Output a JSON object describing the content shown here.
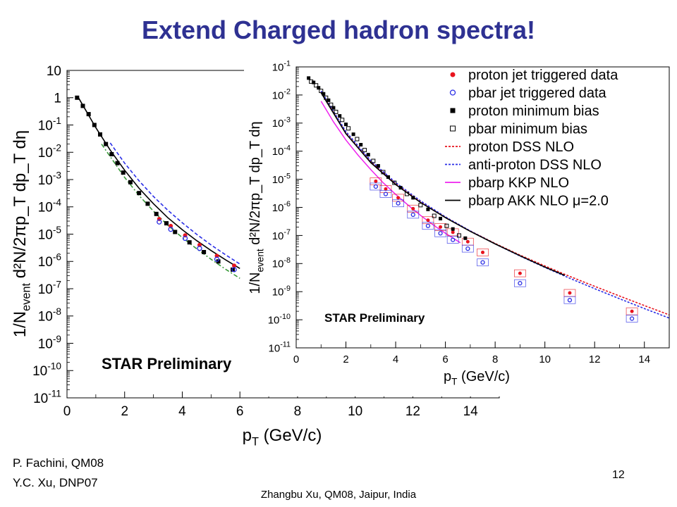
{
  "slide": {
    "title": "Extend Charged hadron spectra!",
    "credits": [
      "P. Fachini, QM08",
      "Y.C. Xu, DNP07"
    ],
    "page_number": "12",
    "footer": "Zhangbu Xu, QM08, Jaipur, India"
  },
  "chart_data": [
    {
      "type": "scatter",
      "log_y": true,
      "xlabel": "p_T (GeV/c)",
      "ylabel": "1/N_event d²N/2πp_T dp_T dη",
      "xlim": [
        0,
        15
      ],
      "ylim": [
        1e-11,
        10
      ],
      "x_ticks": [
        "0",
        "2",
        "4",
        "6",
        "8",
        "10",
        "12",
        "14"
      ],
      "y_ticks": [
        "10",
        "1",
        "10-1",
        "10-2",
        "10-3",
        "10-4",
        "10-5",
        "10-6",
        "10-7",
        "10-8",
        "10-9",
        "10-10",
        "10-11"
      ],
      "annotation": "STAR Preliminary",
      "series": [
        {
          "marker": "black-square",
          "points": [
            [
              0.35,
              1.0
            ],
            [
              0.55,
              0.5
            ],
            [
              0.75,
              0.25
            ],
            [
              0.95,
              0.1
            ],
            [
              1.15,
              0.045
            ],
            [
              1.35,
              0.02
            ],
            [
              1.55,
              0.0085
            ],
            [
              1.75,
              0.004
            ],
            [
              1.95,
              0.0018
            ],
            [
              2.2,
              0.0008
            ],
            [
              2.5,
              0.00032
            ],
            [
              2.8,
              0.00013
            ],
            [
              3.1,
              5.5e-05
            ],
            [
              3.45,
              2.5e-05
            ],
            [
              3.75,
              1.2e-05
            ],
            [
              4.25,
              5e-06
            ],
            [
              4.75,
              2.2e-06
            ],
            [
              5.25,
              1e-06
            ],
            [
              5.75,
              5e-07
            ]
          ]
        },
        {
          "marker": "red-circle",
          "points": [
            [
              3.2,
              3.6e-05
            ],
            [
              3.6,
              2e-05
            ],
            [
              4.1,
              9e-06
            ],
            [
              4.6,
              4e-06
            ],
            [
              5.2,
              1.6e-06
            ],
            [
              5.8,
              7e-07
            ]
          ]
        },
        {
          "marker": "blue-circle",
          "points": [
            [
              3.2,
              2.8e-05
            ],
            [
              3.6,
              1.5e-05
            ],
            [
              4.1,
              7e-06
            ],
            [
              4.6,
              3e-06
            ],
            [
              5.2,
              1.2e-06
            ],
            [
              5.8,
              5e-07
            ]
          ]
        },
        {
          "curve": "black-solid",
          "points": [
            [
              0.4,
              1.0
            ],
            [
              1.0,
              0.08
            ],
            [
              1.5,
              0.012
            ],
            [
              2,
              0.0022
            ],
            [
              2.5,
              0.00048
            ],
            [
              3,
              0.00013
            ],
            [
              3.5,
              4e-05
            ],
            [
              4,
              1.45e-05
            ],
            [
              4.5,
              5.8e-06
            ],
            [
              5,
              2.5e-06
            ],
            [
              5.5,
              1.15e-06
            ],
            [
              6,
              5.5e-07
            ]
          ]
        },
        {
          "curve": "blue-dashed",
          "points": [
            [
              1.5,
              0.022
            ],
            [
              2,
              0.004
            ],
            [
              2.5,
              0.0009
            ],
            [
              3,
              0.00024
            ],
            [
              3.5,
              7.5e-05
            ],
            [
              4,
              2.6e-05
            ],
            [
              4.5,
              9.8e-06
            ],
            [
              5,
              4e-06
            ],
            [
              5.5,
              1.75e-06
            ],
            [
              6,
              8e-07
            ]
          ]
        },
        {
          "curve": "green-dashdot",
          "points": [
            [
              1.2,
              0.02
            ],
            [
              2,
              0.0012
            ],
            [
              2.5,
              0.00026
            ],
            [
              3,
              7e-05
            ],
            [
              3.5,
              2.1e-05
            ],
            [
              4,
              7.5e-06
            ],
            [
              4.5,
              2.9e-06
            ],
            [
              5,
              1.2e-06
            ],
            [
              5.5,
              5.2e-07
            ],
            [
              6,
              2.4e-07
            ]
          ]
        }
      ]
    },
    {
      "type": "scatter",
      "log_y": true,
      "xlabel": "p_T (GeV/c)",
      "ylabel": "1/N_event d²N/2πp_T dp_T dη",
      "xlim": [
        0,
        15
      ],
      "ylim": [
        1e-11,
        0.1
      ],
      "x_ticks": [
        "0",
        "2",
        "4",
        "6",
        "8",
        "10",
        "12",
        "14"
      ],
      "y_ticks": [
        "10-1",
        "10-2",
        "10-3",
        "10-4",
        "10-5",
        "10-6",
        "10-7",
        "10-8",
        "10-9",
        "10-10",
        "10-11"
      ],
      "annotation": "STAR Preliminary",
      "legend": [
        "proton jet triggered data",
        "pbar jet triggered data",
        "proton minimum bias",
        "pbar minimum bias",
        "proton DSS NLO",
        "anti-proton DSS NLO",
        "pbarp KKP NLO",
        "pbarp AKK NLO μ=2.0"
      ],
      "legend_position": "top-right",
      "series": [
        {
          "name": "proton jet triggered data",
          "marker": "red-circle",
          "color": "#e8141e",
          "points": [
            [
              3.2,
              8.5e-06
            ],
            [
              3.6,
              4.5e-06
            ],
            [
              4.1,
              2.2e-06
            ],
            [
              4.7,
              9e-07
            ],
            [
              5.3,
              3.5e-07
            ],
            [
              5.8,
              2e-07
            ],
            [
              6.3,
              1.3e-07
            ],
            [
              6.9,
              6e-08
            ],
            [
              7.5,
              2.5e-08
            ],
            [
              9.0,
              4.5e-09
            ],
            [
              11.0,
              9e-10
            ],
            [
              13.5,
              2e-10
            ]
          ]
        },
        {
          "name": "pbar jet triggered data",
          "marker": "blue-circle",
          "color": "#2a2ee6",
          "points": [
            [
              3.2,
              5.5e-06
            ],
            [
              3.6,
              3e-06
            ],
            [
              4.1,
              1.4e-06
            ],
            [
              4.7,
              5.5e-07
            ],
            [
              5.3,
              2.2e-07
            ],
            [
              5.8,
              1.2e-07
            ],
            [
              6.3,
              7e-08
            ],
            [
              6.9,
              3.4e-08
            ],
            [
              7.5,
              1.1e-08
            ],
            [
              9.0,
              2e-09
            ],
            [
              11.0,
              5e-10
            ],
            [
              13.5,
              1.1e-10
            ]
          ]
        },
        {
          "name": "proton minimum bias",
          "marker": "black-square",
          "color": "#000000",
          "points": [
            [
              0.5,
              0.04
            ],
            [
              0.7,
              0.028
            ],
            [
              0.9,
              0.018
            ],
            [
              1.1,
              0.011
            ],
            [
              1.3,
              0.0065
            ],
            [
              1.5,
              0.0035
            ],
            [
              1.75,
              0.0018
            ],
            [
              2.0,
              0.0009
            ],
            [
              2.3,
              0.0004
            ],
            [
              2.6,
              0.00017
            ],
            [
              2.9,
              7.5e-05
            ],
            [
              3.3,
              3e-05
            ],
            [
              3.7,
              1.2e-05
            ],
            [
              4.2,
              5e-06
            ],
            [
              4.7,
              2.2e-06
            ],
            [
              5.3,
              8.5e-07
            ],
            [
              5.8,
              4e-07
            ],
            [
              6.3,
              1.7e-07
            ],
            [
              6.8,
              8e-08
            ]
          ]
        },
        {
          "name": "pbar minimum bias",
          "marker": "open-square",
          "color": "#000000",
          "points": [
            [
              0.6,
              0.03
            ],
            [
              0.8,
              0.022
            ],
            [
              1.0,
              0.014
            ],
            [
              1.2,
              0.008
            ],
            [
              1.4,
              0.0045
            ],
            [
              1.6,
              0.0025
            ],
            [
              1.85,
              0.0013
            ],
            [
              2.1,
              0.00065
            ],
            [
              2.45,
              0.00027
            ],
            [
              2.75,
              0.00011
            ],
            [
              3.1,
              4.5e-05
            ],
            [
              3.5,
              1.8e-05
            ],
            [
              3.95,
              7.5e-06
            ],
            [
              4.45,
              3e-06
            ],
            [
              5.0,
              1.2e-06
            ],
            [
              5.55,
              5e-07
            ],
            [
              6.05,
              2.2e-07
            ],
            [
              6.55,
              1e-07
            ]
          ]
        },
        {
          "name": "proton DSS NLO",
          "curve": "dotted",
          "color": "#e8141e",
          "points": [
            [
              1.0,
              0.013
            ],
            [
              2,
              0.00045
            ],
            [
              3,
              4.2e-05
            ],
            [
              4,
              7e-06
            ],
            [
              5,
              1.6e-06
            ],
            [
              6,
              4.5e-07
            ],
            [
              7,
              1.45e-07
            ],
            [
              8,
              5.2e-08
            ],
            [
              9,
              2e-08
            ],
            [
              10,
              8.2e-09
            ],
            [
              11,
              3.5e-09
            ],
            [
              12,
              1.55e-09
            ],
            [
              13,
              7e-10
            ],
            [
              14,
              3.2e-10
            ],
            [
              15,
              1.5e-10
            ]
          ]
        },
        {
          "name": "anti-proton DSS NLO",
          "curve": "dotted",
          "color": "#2a2ee6",
          "points": [
            [
              1.0,
              0.014
            ],
            [
              2,
              0.0005
            ],
            [
              3,
              4.6e-05
            ],
            [
              4,
              7.6e-06
            ],
            [
              5,
              1.7e-06
            ],
            [
              6,
              4.6e-07
            ],
            [
              7,
              1.45e-07
            ],
            [
              8,
              5e-08
            ],
            [
              9,
              1.85e-08
            ],
            [
              10,
              7.3e-09
            ],
            [
              11,
              3e-09
            ],
            [
              12,
              1.28e-09
            ],
            [
              13,
              5.6e-10
            ],
            [
              14,
              2.5e-10
            ],
            [
              15,
              1.15e-10
            ]
          ]
        },
        {
          "name": "pbarp KKP NLO",
          "curve": "solid",
          "color": "#ee22ee",
          "points": [
            [
              1.0,
              0.006
            ],
            [
              1.5,
              0.0011
            ],
            [
              2,
              0.00025
            ],
            [
              2.5,
              7e-05
            ],
            [
              3,
              2.2e-05
            ],
            [
              3.5,
              7.5e-06
            ],
            [
              4,
              2.9e-06
            ],
            [
              4.5,
              1.2e-06
            ],
            [
              5,
              5.2e-07
            ],
            [
              5.5,
              2.4e-07
            ],
            [
              6,
              1.2e-07
            ],
            [
              6.6,
              5.5e-08
            ]
          ]
        },
        {
          "name": "pbarp AKK NLO μ=2.0",
          "curve": "solid",
          "color": "#000000",
          "points": [
            [
              1.0,
              0.012
            ],
            [
              2,
              0.00042
            ],
            [
              3,
              3.9e-05
            ],
            [
              4,
              6.5e-06
            ],
            [
              5,
              1.5e-06
            ],
            [
              6,
              4.3e-07
            ],
            [
              7,
              1.4e-07
            ],
            [
              8,
              5e-08
            ],
            [
              9,
              1.9e-08
            ],
            [
              10,
              7.5e-09
            ],
            [
              10.8,
              3.8e-09
            ]
          ]
        }
      ]
    }
  ]
}
